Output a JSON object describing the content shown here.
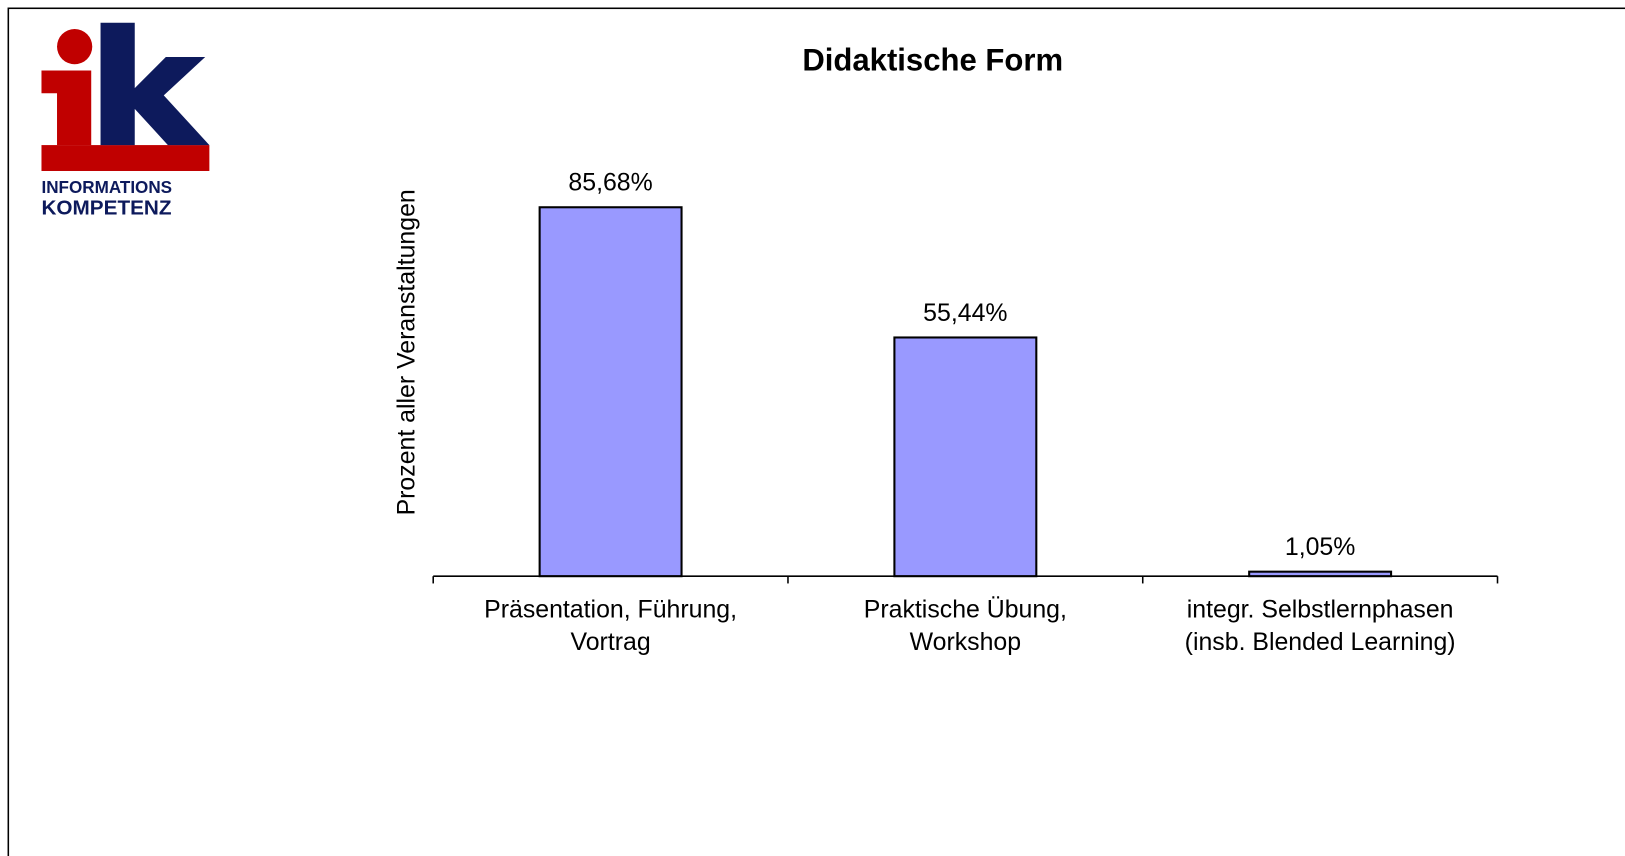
{
  "logo": {
    "lines": [
      "INFORMATIONS",
      "KOMPETENZ"
    ]
  },
  "chart_data": {
    "type": "bar",
    "title": "Didaktische Form",
    "y_axis_label": "Prozent aller Veranstaltungen",
    "categories": [
      [
        "Präsentation, Führung,",
        "Vortrag"
      ],
      [
        "Praktische Übung,",
        "Workshop"
      ],
      [
        "integr. Selbstlernphasen",
        "(insb. Blended Learning)"
      ]
    ],
    "values": [
      85.68,
      55.44,
      1.05
    ],
    "value_labels": [
      "85,68%",
      "55,44%",
      "1,05%"
    ],
    "color": "#9999ff",
    "ylim": [
      0,
      100
    ]
  }
}
